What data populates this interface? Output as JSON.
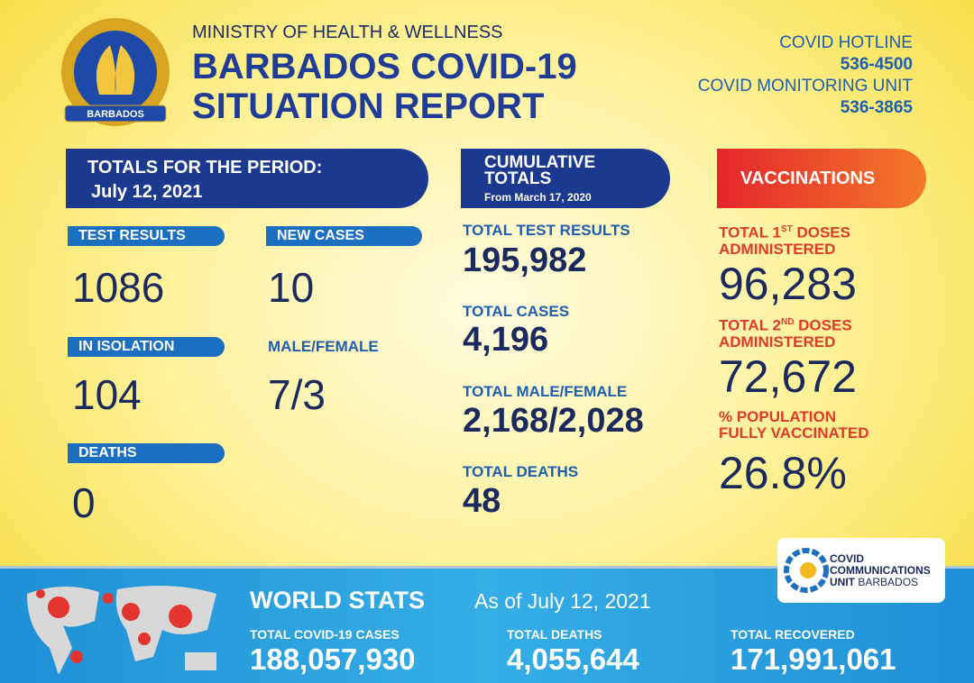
{
  "header": {
    "logo_text": "BARBADOS",
    "ministry": "MINISTRY OF HEALTH & WELLNESS",
    "title_lines": [
      "BARBADOS COVID-19",
      "SITUATION REPORT"
    ]
  },
  "contacts": [
    {
      "label": "COVID HOTLINE",
      "number": "536-4500"
    },
    {
      "label": "COVID MONITORING UNIT",
      "number": "536-3865"
    }
  ],
  "period": {
    "heading": "TOTALS FOR THE PERIOD:",
    "date": "July 12, 2021",
    "stats": [
      {
        "label": "TEST RESULTS",
        "value": "1086"
      },
      {
        "label": "NEW CASES",
        "value": "10"
      },
      {
        "label": "IN ISOLATION",
        "value": "104"
      },
      {
        "label": "MALE/FEMALE",
        "value": "7/3"
      },
      {
        "label": "DEATHS",
        "value": "0"
      }
    ]
  },
  "cumulative": {
    "heading_lines": [
      "CUMULATIVE",
      "TOTALS"
    ],
    "subheading": "From March 17, 2020",
    "items": [
      {
        "label": "TOTAL TEST RESULTS",
        "value": "195,982"
      },
      {
        "label": "TOTAL CASES",
        "value": "4,196"
      },
      {
        "label": "TOTAL MALE/FEMALE",
        "value": "2,168/2,028"
      },
      {
        "label": "TOTAL DEATHS",
        "value": "48"
      }
    ]
  },
  "vaccinations": {
    "heading": "VACCINATIONS",
    "items": [
      {
        "label_start": "TOTAL 1",
        "label_sup": "ST",
        "label_end": " DOSES",
        "label_line2": "ADMINISTERED",
        "value": "96,283"
      },
      {
        "label_start": "TOTAL 2",
        "label_sup": "ND",
        "label_end": " DOSES",
        "label_line2": "ADMINISTERED",
        "value": "72,672"
      },
      {
        "label_start": "% POPULATION",
        "label_sup": "",
        "label_end": "",
        "label_line2": "FULLY VACCINATED",
        "value": "26.8%"
      }
    ]
  },
  "world": {
    "title": "WORLD STATS",
    "date": "As of July 12, 2021",
    "items": [
      {
        "label": "TOTAL COVID-19 CASES",
        "value": "188,057,930"
      },
      {
        "label": "TOTAL DEATHS",
        "value": "4,055,644"
      },
      {
        "label": "TOTAL RECOVERED",
        "value": "171,991,061"
      }
    ]
  },
  "footer_logo": {
    "lines": [
      "COVID",
      "COMMUNICATIONS",
      "UNIT"
    ],
    "place": "BARBADOS"
  }
}
